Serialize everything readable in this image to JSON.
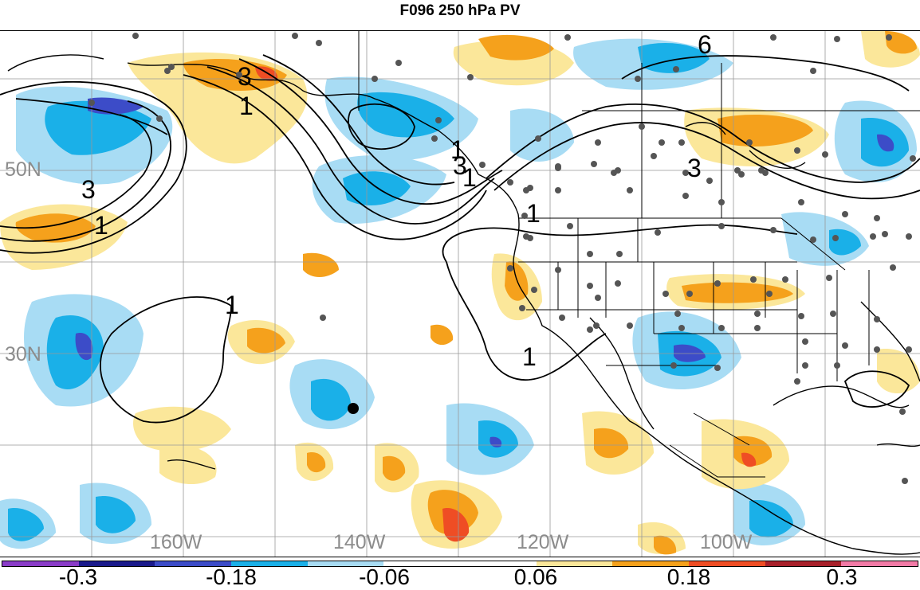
{
  "title": "F096 250 hPa PV",
  "lat_labels": [
    "50N",
    "30N"
  ],
  "lon_labels": [
    "160W",
    "140W",
    "120W",
    "100W"
  ],
  "contour_labels": [
    "3",
    "1",
    "3",
    "1",
    "1",
    "3",
    "6",
    "3",
    "1",
    "1",
    "1",
    "1"
  ],
  "colorbar": {
    "colors": [
      "#8a3cc8",
      "#1a1a8c",
      "#3c4cc8",
      "#1ab0e8",
      "#a8dcf4",
      "#ffffff",
      "#ffffff",
      "#fbe79a",
      "#f5a11c",
      "#ef4d24",
      "#a8202a",
      "#f27aa6"
    ],
    "labels": [
      "-0.3",
      "-0.18",
      "-0.06",
      "0.06",
      "0.18",
      "0.3"
    ]
  },
  "palette": {
    "light_blue": "#a8dcf4",
    "mid_blue": "#1ab0e8",
    "dark_blue": "#3c4cc8",
    "light_orange": "#fbe79a",
    "mid_orange": "#f5a11c",
    "red": "#ef4d24",
    "station_dot": "#555555"
  }
}
